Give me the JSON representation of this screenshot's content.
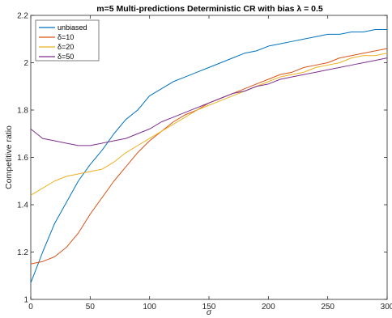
{
  "chart_data": {
    "type": "line",
    "title": "m=5 Multi-predictions Deterministic CR with bias  λ = 0.5",
    "xlabel": "σ",
    "ylabel": "Competitive ratio",
    "xlim": [
      0,
      300
    ],
    "ylim": [
      1,
      2.2
    ],
    "xticks": [
      0,
      50,
      100,
      150,
      200,
      250,
      300
    ],
    "yticks": [
      1,
      1.2,
      1.4,
      1.6,
      1.8,
      2,
      2.2
    ],
    "grid": false,
    "legend_position": "top-left",
    "series": [
      {
        "name": "unbiased",
        "color": "#0072BD",
        "x": [
          0,
          10,
          20,
          30,
          40,
          50,
          60,
          70,
          80,
          90,
          100,
          110,
          120,
          130,
          140,
          150,
          160,
          170,
          180,
          190,
          200,
          210,
          220,
          230,
          240,
          250,
          260,
          270,
          280,
          290,
          300
        ],
        "y": [
          1.07,
          1.2,
          1.32,
          1.41,
          1.5,
          1.57,
          1.63,
          1.7,
          1.76,
          1.8,
          1.86,
          1.89,
          1.92,
          1.94,
          1.96,
          1.98,
          2.0,
          2.02,
          2.04,
          2.05,
          2.07,
          2.08,
          2.09,
          2.1,
          2.11,
          2.12,
          2.12,
          2.13,
          2.13,
          2.14,
          2.14
        ]
      },
      {
        "name": "δ=10",
        "color": "#D95319",
        "x": [
          0,
          10,
          20,
          30,
          40,
          50,
          60,
          70,
          80,
          90,
          100,
          110,
          120,
          130,
          140,
          150,
          160,
          170,
          180,
          190,
          200,
          210,
          220,
          230,
          240,
          250,
          260,
          270,
          280,
          290,
          300
        ],
        "y": [
          1.15,
          1.16,
          1.18,
          1.22,
          1.28,
          1.36,
          1.43,
          1.5,
          1.56,
          1.62,
          1.67,
          1.71,
          1.75,
          1.78,
          1.8,
          1.83,
          1.85,
          1.87,
          1.89,
          1.91,
          1.93,
          1.95,
          1.96,
          1.98,
          1.99,
          2.0,
          2.02,
          2.03,
          2.04,
          2.05,
          2.06
        ]
      },
      {
        "name": "δ=20",
        "color": "#EDB120",
        "x": [
          0,
          10,
          20,
          30,
          40,
          50,
          60,
          70,
          80,
          90,
          100,
          110,
          120,
          130,
          140,
          150,
          160,
          170,
          180,
          190,
          200,
          210,
          220,
          230,
          240,
          250,
          260,
          270,
          280,
          290,
          300
        ],
        "y": [
          1.44,
          1.47,
          1.5,
          1.52,
          1.53,
          1.54,
          1.55,
          1.58,
          1.62,
          1.65,
          1.68,
          1.71,
          1.74,
          1.77,
          1.8,
          1.82,
          1.84,
          1.86,
          1.88,
          1.9,
          1.92,
          1.94,
          1.95,
          1.96,
          1.98,
          1.99,
          2.0,
          2.02,
          2.03,
          2.03,
          2.04
        ]
      },
      {
        "name": "δ=50",
        "color": "#7E2F8E",
        "x": [
          0,
          10,
          20,
          30,
          40,
          50,
          60,
          70,
          80,
          90,
          100,
          110,
          120,
          130,
          140,
          150,
          160,
          170,
          180,
          190,
          200,
          210,
          220,
          230,
          240,
          250,
          260,
          270,
          280,
          290,
          300
        ],
        "y": [
          1.72,
          1.68,
          1.67,
          1.66,
          1.65,
          1.65,
          1.66,
          1.67,
          1.68,
          1.7,
          1.72,
          1.75,
          1.77,
          1.79,
          1.81,
          1.83,
          1.85,
          1.87,
          1.88,
          1.9,
          1.91,
          1.93,
          1.94,
          1.95,
          1.96,
          1.97,
          1.98,
          1.99,
          2.0,
          2.01,
          2.02
        ]
      }
    ]
  }
}
